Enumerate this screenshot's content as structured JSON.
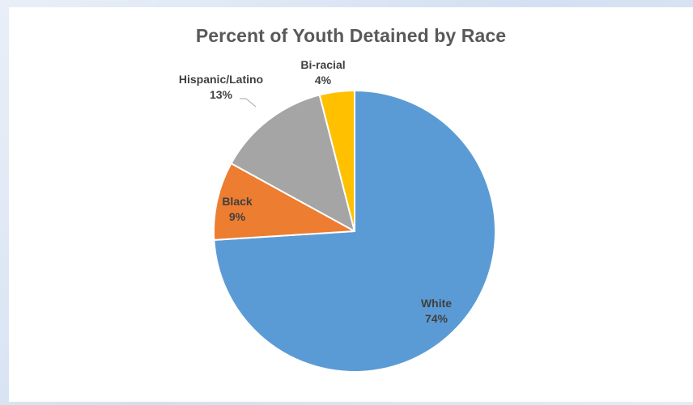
{
  "chart_data": {
    "type": "pie",
    "title": "Percent of Youth Detained by Race",
    "categories": [
      "White",
      "Black",
      "Hispanic/Latino",
      "Bi-racial"
    ],
    "values": [
      74,
      9,
      13,
      4
    ],
    "value_labels": [
      "74%",
      "9%",
      "13%",
      "4%"
    ],
    "colors": [
      "#5B9BD5",
      "#ED7D31",
      "#A5A5A5",
      "#FFC000"
    ],
    "label_text_colors": [
      "#404040",
      "#404040",
      "#404040",
      "#404040"
    ],
    "legend": "none",
    "start_angle": "12 o'clock",
    "direction": "clockwise"
  }
}
